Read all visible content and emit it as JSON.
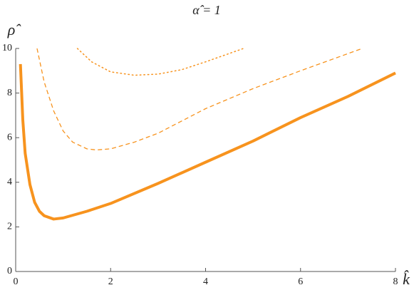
{
  "chart_data": {
    "type": "line",
    "title": "α̂ = 1",
    "x_label": "k̂",
    "y_label": "ρ̂",
    "xlim": [
      0,
      8
    ],
    "ylim": [
      0,
      10
    ],
    "xticks": [
      0,
      2,
      4,
      6,
      8
    ],
    "yticks": [
      0,
      2,
      4,
      6,
      8,
      10
    ],
    "series": [
      {
        "color": "#f7931e",
        "style": "solid",
        "width": 4,
        "x": [
          0.1,
          0.15,
          0.2,
          0.3,
          0.4,
          0.5,
          0.6,
          0.8,
          1.0,
          1.5,
          2,
          3,
          4,
          5,
          6,
          7,
          8
        ],
        "values": [
          9.3,
          6.8,
          5.3,
          3.9,
          3.1,
          2.7,
          2.5,
          2.35,
          2.4,
          2.7,
          3.05,
          3.95,
          4.9,
          5.85,
          6.9,
          7.85,
          8.9
        ]
      },
      {
        "color": "#f7931e",
        "style": "dashed",
        "width": 1.3,
        "x": [
          0.45,
          0.6,
          0.8,
          1.0,
          1.2,
          1.5,
          1.7,
          2,
          2.5,
          3,
          4,
          5,
          6,
          7.3
        ],
        "values": [
          10,
          8.5,
          7.2,
          6.3,
          5.8,
          5.5,
          5.45,
          5.5,
          5.8,
          6.2,
          7.3,
          8.2,
          9,
          10
        ]
      },
      {
        "color": "#f7931e",
        "style": "dotted",
        "width": 1.5,
        "x": [
          1.3,
          1.6,
          2,
          2.5,
          3,
          3.5,
          4,
          4.8
        ],
        "values": [
          10,
          9.4,
          8.95,
          8.8,
          8.85,
          9.05,
          9.4,
          10
        ]
      }
    ]
  }
}
